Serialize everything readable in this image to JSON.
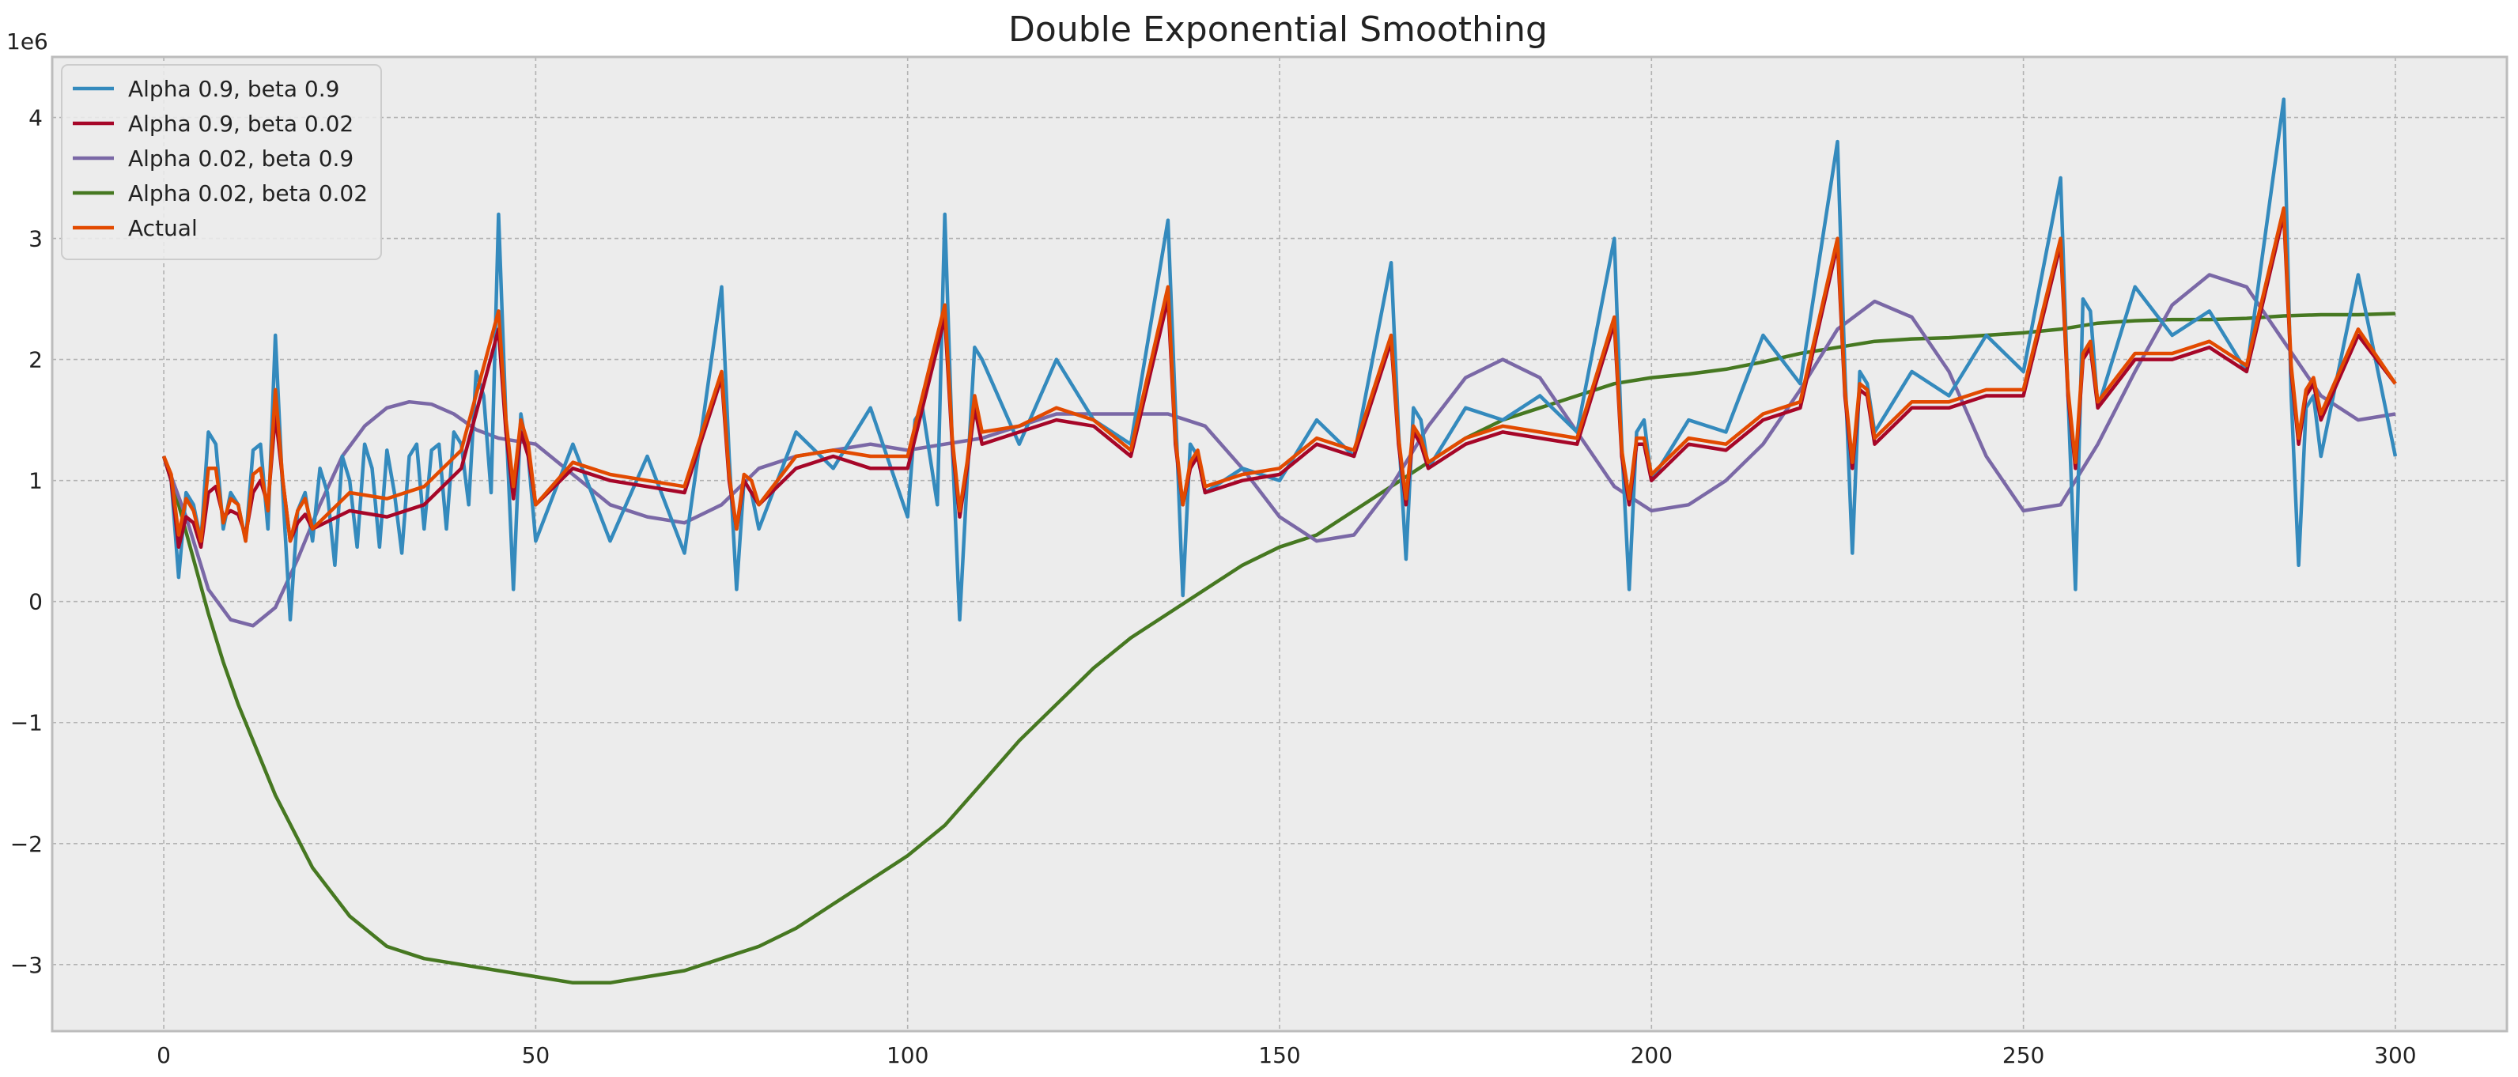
{
  "chart_data": {
    "type": "line",
    "title": "Double Exponential Smoothing",
    "xlabel": "",
    "ylabel": "",
    "y_offset_label": "1e6",
    "xlim": [
      -15,
      315
    ],
    "ylim": [
      -3.55,
      4.5
    ],
    "x_ticks": [
      0,
      50,
      100,
      150,
      200,
      250,
      300
    ],
    "y_ticks": [
      -3,
      -2,
      -1,
      0,
      1,
      2,
      3,
      4
    ],
    "x_tick_labels": [
      "0",
      "50",
      "100",
      "150",
      "200",
      "250",
      "300"
    ],
    "y_tick_labels": [
      "−3",
      "−2",
      "−1",
      "0",
      "1",
      "2",
      "3",
      "4"
    ],
    "grid": true,
    "legend_position": "top-left",
    "background": "#ececec",
    "series": [
      {
        "name": "Alpha 0.9, beta 0.9",
        "color": "#348abd",
        "x": [
          0,
          1,
          2,
          3,
          4,
          5,
          6,
          7,
          8,
          9,
          10,
          11,
          12,
          13,
          14,
          15,
          16,
          17,
          18,
          19,
          20,
          21,
          22,
          23,
          24,
          25,
          26,
          27,
          28,
          29,
          30,
          31,
          32,
          33,
          34,
          35,
          36,
          37,
          38,
          39,
          40,
          41,
          42,
          43,
          44,
          45,
          46,
          47,
          48,
          49,
          50,
          55,
          60,
          65,
          70,
          75,
          76,
          77,
          78,
          79,
          80,
          85,
          90,
          95,
          100,
          101,
          102,
          103,
          104,
          105,
          106,
          107,
          108,
          109,
          110,
          115,
          120,
          125,
          130,
          135,
          136,
          137,
          138,
          139,
          140,
          145,
          150,
          155,
          160,
          165,
          166,
          167,
          168,
          169,
          170,
          175,
          180,
          185,
          190,
          195,
          196,
          197,
          198,
          199,
          200,
          205,
          210,
          215,
          220,
          225,
          226,
          227,
          228,
          229,
          230,
          235,
          240,
          245,
          250,
          255,
          256,
          257,
          258,
          259,
          260,
          265,
          270,
          275,
          280,
          285,
          286,
          287,
          288,
          289,
          290,
          295,
          300
        ],
        "values": [
          1.2,
          1.0,
          0.2,
          0.9,
          0.8,
          0.5,
          1.4,
          1.3,
          0.6,
          0.9,
          0.8,
          0.5,
          1.25,
          1.3,
          0.6,
          2.2,
          0.9,
          -0.15,
          0.75,
          0.9,
          0.5,
          1.1,
          0.9,
          0.3,
          1.2,
          1.0,
          0.45,
          1.3,
          1.1,
          0.45,
          1.25,
          0.9,
          0.4,
          1.2,
          1.3,
          0.6,
          1.25,
          1.3,
          0.6,
          1.4,
          1.3,
          0.8,
          1.9,
          1.7,
          0.9,
          3.2,
          1.5,
          0.1,
          1.55,
          1.2,
          0.5,
          1.3,
          0.5,
          1.2,
          0.4,
          2.6,
          1.2,
          0.1,
          1.0,
          0.9,
          0.6,
          1.4,
          1.1,
          1.6,
          0.7,
          1.5,
          1.6,
          1.2,
          0.8,
          3.2,
          1.3,
          -0.15,
          1.0,
          2.1,
          2.0,
          1.3,
          2.0,
          1.5,
          1.3,
          3.15,
          1.6,
          0.05,
          1.3,
          1.2,
          0.9,
          1.1,
          1.0,
          1.5,
          1.2,
          2.8,
          1.4,
          0.35,
          1.6,
          1.5,
          1.1,
          1.6,
          1.5,
          1.7,
          1.4,
          3.0,
          1.3,
          0.1,
          1.4,
          1.5,
          1.0,
          1.5,
          1.4,
          2.2,
          1.8,
          3.8,
          1.9,
          0.4,
          1.9,
          1.8,
          1.4,
          1.9,
          1.7,
          2.2,
          1.9,
          3.5,
          1.7,
          0.1,
          2.5,
          2.4,
          1.6,
          2.6,
          2.2,
          2.4,
          1.9,
          4.15,
          1.7,
          0.3,
          1.6,
          1.7,
          1.2,
          2.7,
          1.2
        ]
      },
      {
        "name": "Alpha 0.9, beta 0.02",
        "color": "#a60628",
        "x": [
          0,
          1,
          2,
          3,
          4,
          5,
          6,
          7,
          8,
          9,
          10,
          11,
          12,
          13,
          14,
          15,
          16,
          17,
          18,
          19,
          20,
          25,
          30,
          35,
          40,
          45,
          46,
          47,
          48,
          49,
          50,
          55,
          60,
          65,
          70,
          75,
          76,
          77,
          78,
          79,
          80,
          85,
          90,
          95,
          100,
          105,
          106,
          107,
          108,
          109,
          110,
          115,
          120,
          125,
          130,
          135,
          136,
          137,
          138,
          139,
          140,
          145,
          150,
          155,
          160,
          165,
          166,
          167,
          168,
          169,
          170,
          175,
          180,
          185,
          190,
          195,
          196,
          197,
          198,
          199,
          200,
          205,
          210,
          215,
          220,
          225,
          226,
          227,
          228,
          229,
          230,
          235,
          240,
          245,
          250,
          255,
          256,
          257,
          258,
          259,
          260,
          265,
          270,
          275,
          280,
          285,
          286,
          287,
          288,
          289,
          290,
          295,
          300
        ],
        "values": [
          1.2,
          1.0,
          0.45,
          0.7,
          0.65,
          0.45,
          0.9,
          0.95,
          0.7,
          0.75,
          0.72,
          0.55,
          0.9,
          1.0,
          0.8,
          1.55,
          1.0,
          0.5,
          0.65,
          0.72,
          0.6,
          0.75,
          0.7,
          0.8,
          1.1,
          2.25,
          1.4,
          0.85,
          1.4,
          1.2,
          0.8,
          1.1,
          1.0,
          0.95,
          0.9,
          1.85,
          1.0,
          0.6,
          1.0,
          0.9,
          0.8,
          1.1,
          1.2,
          1.1,
          1.1,
          2.35,
          1.3,
          0.7,
          1.1,
          1.6,
          1.3,
          1.4,
          1.5,
          1.45,
          1.2,
          2.5,
          1.3,
          0.8,
          1.1,
          1.2,
          0.9,
          1.0,
          1.05,
          1.3,
          1.2,
          2.15,
          1.3,
          0.8,
          1.4,
          1.3,
          1.1,
          1.3,
          1.4,
          1.35,
          1.3,
          2.3,
          1.2,
          0.8,
          1.3,
          1.3,
          1.0,
          1.3,
          1.25,
          1.5,
          1.6,
          2.95,
          1.7,
          1.1,
          1.75,
          1.7,
          1.3,
          1.6,
          1.6,
          1.7,
          1.7,
          2.95,
          1.7,
          1.1,
          2.0,
          2.1,
          1.6,
          2.0,
          2.0,
          2.1,
          1.9,
          3.2,
          1.9,
          1.3,
          1.7,
          1.8,
          1.5,
          2.2,
          1.8
        ]
      },
      {
        "name": "Alpha 0.02, beta 0.9",
        "color": "#7a68a6",
        "x": [
          0,
          3,
          6,
          9,
          12,
          15,
          18,
          21,
          24,
          27,
          30,
          33,
          36,
          39,
          42,
          45,
          50,
          55,
          60,
          65,
          70,
          75,
          80,
          85,
          90,
          95,
          100,
          105,
          110,
          115,
          120,
          125,
          130,
          135,
          140,
          145,
          150,
          155,
          160,
          165,
          170,
          175,
          180,
          185,
          190,
          195,
          200,
          205,
          210,
          215,
          220,
          225,
          230,
          235,
          240,
          245,
          250,
          255,
          260,
          265,
          270,
          275,
          280,
          285,
          290,
          295,
          300
        ],
        "values": [
          1.2,
          0.7,
          0.1,
          -0.15,
          -0.2,
          -0.05,
          0.35,
          0.8,
          1.2,
          1.45,
          1.6,
          1.65,
          1.63,
          1.55,
          1.42,
          1.35,
          1.3,
          1.05,
          0.8,
          0.7,
          0.65,
          0.8,
          1.1,
          1.2,
          1.25,
          1.3,
          1.25,
          1.3,
          1.35,
          1.45,
          1.55,
          1.55,
          1.55,
          1.55,
          1.45,
          1.1,
          0.7,
          0.5,
          0.55,
          0.95,
          1.45,
          1.85,
          2.0,
          1.85,
          1.4,
          0.95,
          0.75,
          0.8,
          1.0,
          1.3,
          1.75,
          2.25,
          2.48,
          2.35,
          1.9,
          1.2,
          0.75,
          0.8,
          1.3,
          1.9,
          2.45,
          2.7,
          2.6,
          2.15,
          1.7,
          1.5,
          1.55
        ]
      },
      {
        "name": "Alpha 0.02, beta 0.02",
        "color": "#467821",
        "x": [
          0,
          2,
          4,
          6,
          8,
          10,
          15,
          20,
          25,
          30,
          35,
          40,
          45,
          50,
          55,
          60,
          65,
          70,
          75,
          80,
          85,
          90,
          95,
          100,
          105,
          110,
          115,
          120,
          125,
          130,
          135,
          140,
          145,
          150,
          155,
          160,
          165,
          170,
          175,
          180,
          185,
          190,
          195,
          200,
          205,
          210,
          215,
          220,
          225,
          230,
          235,
          240,
          245,
          250,
          255,
          260,
          265,
          270,
          275,
          280,
          285,
          290,
          295,
          300
        ],
        "values": [
          1.2,
          0.8,
          0.35,
          -0.1,
          -0.5,
          -0.85,
          -1.6,
          -2.2,
          -2.6,
          -2.85,
          -2.95,
          -3.0,
          -3.05,
          -3.1,
          -3.15,
          -3.15,
          -3.1,
          -3.05,
          -2.95,
          -2.85,
          -2.7,
          -2.5,
          -2.3,
          -2.1,
          -1.85,
          -1.5,
          -1.15,
          -0.85,
          -0.55,
          -0.3,
          -0.1,
          0.1,
          0.3,
          0.45,
          0.55,
          0.75,
          0.95,
          1.15,
          1.35,
          1.5,
          1.6,
          1.7,
          1.8,
          1.85,
          1.88,
          1.92,
          1.98,
          2.05,
          2.1,
          2.15,
          2.17,
          2.18,
          2.2,
          2.22,
          2.25,
          2.3,
          2.32,
          2.33,
          2.33,
          2.34,
          2.36,
          2.37,
          2.37,
          2.38
        ]
      },
      {
        "name": "Actual",
        "color": "#e24a00",
        "x": [
          0,
          1,
          2,
          3,
          4,
          5,
          6,
          7,
          8,
          9,
          10,
          11,
          12,
          13,
          14,
          15,
          16,
          17,
          18,
          19,
          20,
          25,
          30,
          35,
          40,
          45,
          46,
          47,
          48,
          49,
          50,
          55,
          60,
          65,
          70,
          75,
          76,
          77,
          78,
          79,
          80,
          85,
          90,
          95,
          100,
          105,
          106,
          107,
          108,
          109,
          110,
          115,
          120,
          125,
          130,
          135,
          136,
          137,
          138,
          139,
          140,
          145,
          150,
          155,
          160,
          165,
          166,
          167,
          168,
          169,
          170,
          175,
          180,
          185,
          190,
          195,
          196,
          197,
          198,
          199,
          200,
          205,
          210,
          215,
          220,
          225,
          226,
          227,
          228,
          229,
          230,
          235,
          240,
          245,
          250,
          255,
          256,
          257,
          258,
          259,
          260,
          265,
          270,
          275,
          280,
          285,
          286,
          287,
          288,
          289,
          290,
          295,
          300
        ],
        "values": [
          1.2,
          1.05,
          0.55,
          0.85,
          0.75,
          0.5,
          1.1,
          1.1,
          0.65,
          0.85,
          0.8,
          0.5,
          1.05,
          1.1,
          0.75,
          1.75,
          1.0,
          0.5,
          0.75,
          0.85,
          0.6,
          0.9,
          0.85,
          0.95,
          1.25,
          2.4,
          1.5,
          0.95,
          1.5,
          1.3,
          0.8,
          1.15,
          1.05,
          1.0,
          0.95,
          1.9,
          1.05,
          0.6,
          1.05,
          1.0,
          0.8,
          1.2,
          1.25,
          1.2,
          1.2,
          2.45,
          1.35,
          0.75,
          1.15,
          1.7,
          1.4,
          1.45,
          1.6,
          1.5,
          1.25,
          2.6,
          1.35,
          0.8,
          1.15,
          1.25,
          0.95,
          1.05,
          1.1,
          1.35,
          1.25,
          2.2,
          1.35,
          0.85,
          1.45,
          1.35,
          1.15,
          1.35,
          1.45,
          1.4,
          1.35,
          2.35,
          1.25,
          0.85,
          1.35,
          1.35,
          1.05,
          1.35,
          1.3,
          1.55,
          1.65,
          3.0,
          1.75,
          1.15,
          1.8,
          1.75,
          1.35,
          1.65,
          1.65,
          1.75,
          1.75,
          3.0,
          1.75,
          1.15,
          2.05,
          2.15,
          1.65,
          2.05,
          2.05,
          2.15,
          1.95,
          3.25,
          1.95,
          1.35,
          1.75,
          1.85,
          1.55,
          2.25,
          1.8
        ]
      }
    ]
  }
}
